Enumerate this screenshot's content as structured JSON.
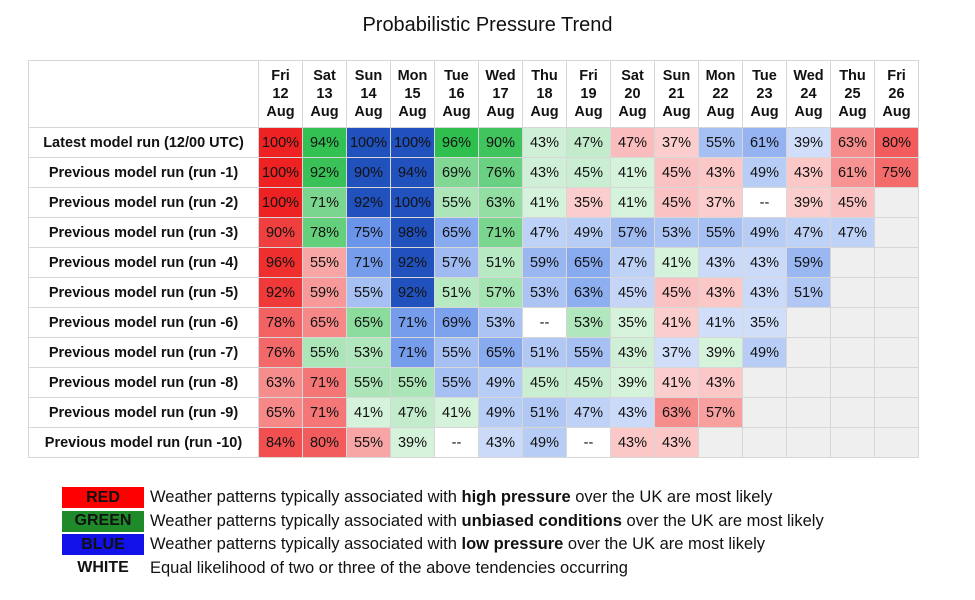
{
  "chart_data": {
    "type": "table",
    "title": "Probabilistic Pressure Trend",
    "columns": [
      {
        "day": "Fri",
        "date": "12",
        "month": "Aug"
      },
      {
        "day": "Sat",
        "date": "13",
        "month": "Aug"
      },
      {
        "day": "Sun",
        "date": "14",
        "month": "Aug"
      },
      {
        "day": "Mon",
        "date": "15",
        "month": "Aug"
      },
      {
        "day": "Tue",
        "date": "16",
        "month": "Aug"
      },
      {
        "day": "Wed",
        "date": "17",
        "month": "Aug"
      },
      {
        "day": "Thu",
        "date": "18",
        "month": "Aug"
      },
      {
        "day": "Fri",
        "date": "19",
        "month": "Aug"
      },
      {
        "day": "Sat",
        "date": "20",
        "month": "Aug"
      },
      {
        "day": "Sun",
        "date": "21",
        "month": "Aug"
      },
      {
        "day": "Mon",
        "date": "22",
        "month": "Aug"
      },
      {
        "day": "Tue",
        "date": "23",
        "month": "Aug"
      },
      {
        "day": "Wed",
        "date": "24",
        "month": "Aug"
      },
      {
        "day": "Thu",
        "date": "25",
        "month": "Aug"
      },
      {
        "day": "Fri",
        "date": "26",
        "month": "Aug"
      }
    ],
    "rows": [
      {
        "label": "Latest model run (12/00 UTC)",
        "cells": [
          {
            "v": "100%",
            "t": "H"
          },
          {
            "v": "94%",
            "t": "U"
          },
          {
            "v": "100%",
            "t": "L"
          },
          {
            "v": "100%",
            "t": "L"
          },
          {
            "v": "96%",
            "t": "U"
          },
          {
            "v": "90%",
            "t": "U"
          },
          {
            "v": "43%",
            "t": "U"
          },
          {
            "v": "47%",
            "t": "U"
          },
          {
            "v": "47%",
            "t": "H"
          },
          {
            "v": "37%",
            "t": "H"
          },
          {
            "v": "55%",
            "t": "L"
          },
          {
            "v": "61%",
            "t": "L"
          },
          {
            "v": "39%",
            "t": "L"
          },
          {
            "v": "63%",
            "t": "H"
          },
          {
            "v": "80%",
            "t": "H"
          }
        ]
      },
      {
        "label": "Previous model run (run -1)",
        "cells": [
          {
            "v": "100%",
            "t": "H"
          },
          {
            "v": "92%",
            "t": "U"
          },
          {
            "v": "90%",
            "t": "L"
          },
          {
            "v": "94%",
            "t": "L"
          },
          {
            "v": "69%",
            "t": "U"
          },
          {
            "v": "76%",
            "t": "U"
          },
          {
            "v": "43%",
            "t": "U"
          },
          {
            "v": "45%",
            "t": "U"
          },
          {
            "v": "41%",
            "t": "U"
          },
          {
            "v": "45%",
            "t": "H"
          },
          {
            "v": "43%",
            "t": "H"
          },
          {
            "v": "49%",
            "t": "L"
          },
          {
            "v": "43%",
            "t": "H"
          },
          {
            "v": "61%",
            "t": "H"
          },
          {
            "v": "75%",
            "t": "H"
          }
        ]
      },
      {
        "label": "Previous model run (run -2)",
        "cells": [
          {
            "v": "100%",
            "t": "H"
          },
          {
            "v": "71%",
            "t": "U"
          },
          {
            "v": "92%",
            "t": "L"
          },
          {
            "v": "100%",
            "t": "L"
          },
          {
            "v": "55%",
            "t": "U"
          },
          {
            "v": "63%",
            "t": "U"
          },
          {
            "v": "41%",
            "t": "U"
          },
          {
            "v": "35%",
            "t": "H"
          },
          {
            "v": "41%",
            "t": "U"
          },
          {
            "v": "45%",
            "t": "H"
          },
          {
            "v": "37%",
            "t": "H"
          },
          {
            "v": "--",
            "t": "W"
          },
          {
            "v": "39%",
            "t": "H"
          },
          {
            "v": "45%",
            "t": "H"
          },
          {
            "v": "",
            "t": "E"
          }
        ]
      },
      {
        "label": "Previous model run (run -3)",
        "cells": [
          {
            "v": "90%",
            "t": "H"
          },
          {
            "v": "78%",
            "t": "U"
          },
          {
            "v": "75%",
            "t": "L"
          },
          {
            "v": "98%",
            "t": "L"
          },
          {
            "v": "65%",
            "t": "L"
          },
          {
            "v": "71%",
            "t": "U"
          },
          {
            "v": "47%",
            "t": "L"
          },
          {
            "v": "49%",
            "t": "L"
          },
          {
            "v": "57%",
            "t": "L"
          },
          {
            "v": "53%",
            "t": "L"
          },
          {
            "v": "55%",
            "t": "L"
          },
          {
            "v": "49%",
            "t": "L"
          },
          {
            "v": "47%",
            "t": "L"
          },
          {
            "v": "47%",
            "t": "L"
          },
          {
            "v": "",
            "t": "E"
          }
        ]
      },
      {
        "label": "Previous model run (run -4)",
        "cells": [
          {
            "v": "96%",
            "t": "H"
          },
          {
            "v": "55%",
            "t": "H"
          },
          {
            "v": "71%",
            "t": "L"
          },
          {
            "v": "92%",
            "t": "L"
          },
          {
            "v": "57%",
            "t": "L"
          },
          {
            "v": "51%",
            "t": "U"
          },
          {
            "v": "59%",
            "t": "L"
          },
          {
            "v": "65%",
            "t": "L"
          },
          {
            "v": "47%",
            "t": "L"
          },
          {
            "v": "41%",
            "t": "U"
          },
          {
            "v": "43%",
            "t": "L"
          },
          {
            "v": "43%",
            "t": "L"
          },
          {
            "v": "59%",
            "t": "L"
          },
          {
            "v": "",
            "t": "E"
          },
          {
            "v": "",
            "t": "E"
          }
        ]
      },
      {
        "label": "Previous model run (run -5)",
        "cells": [
          {
            "v": "92%",
            "t": "H"
          },
          {
            "v": "59%",
            "t": "H"
          },
          {
            "v": "55%",
            "t": "L"
          },
          {
            "v": "92%",
            "t": "L"
          },
          {
            "v": "51%",
            "t": "U"
          },
          {
            "v": "57%",
            "t": "U"
          },
          {
            "v": "53%",
            "t": "L"
          },
          {
            "v": "63%",
            "t": "L"
          },
          {
            "v": "45%",
            "t": "L"
          },
          {
            "v": "45%",
            "t": "H"
          },
          {
            "v": "43%",
            "t": "H"
          },
          {
            "v": "43%",
            "t": "L"
          },
          {
            "v": "51%",
            "t": "L"
          },
          {
            "v": "",
            "t": "E"
          },
          {
            "v": "",
            "t": "E"
          }
        ]
      },
      {
        "label": "Previous model run (run -6)",
        "cells": [
          {
            "v": "78%",
            "t": "H"
          },
          {
            "v": "65%",
            "t": "H"
          },
          {
            "v": "65%",
            "t": "U"
          },
          {
            "v": "71%",
            "t": "L"
          },
          {
            "v": "69%",
            "t": "L"
          },
          {
            "v": "53%",
            "t": "L"
          },
          {
            "v": "--",
            "t": "W"
          },
          {
            "v": "53%",
            "t": "U"
          },
          {
            "v": "35%",
            "t": "U"
          },
          {
            "v": "41%",
            "t": "H"
          },
          {
            "v": "41%",
            "t": "L"
          },
          {
            "v": "35%",
            "t": "L"
          },
          {
            "v": "",
            "t": "E"
          },
          {
            "v": "",
            "t": "E"
          },
          {
            "v": "",
            "t": "E"
          }
        ]
      },
      {
        "label": "Previous model run (run -7)",
        "cells": [
          {
            "v": "76%",
            "t": "H"
          },
          {
            "v": "55%",
            "t": "U"
          },
          {
            "v": "53%",
            "t": "U"
          },
          {
            "v": "71%",
            "t": "L"
          },
          {
            "v": "55%",
            "t": "L"
          },
          {
            "v": "65%",
            "t": "L"
          },
          {
            "v": "51%",
            "t": "L"
          },
          {
            "v": "55%",
            "t": "L"
          },
          {
            "v": "43%",
            "t": "U"
          },
          {
            "v": "37%",
            "t": "L"
          },
          {
            "v": "39%",
            "t": "U"
          },
          {
            "v": "49%",
            "t": "L"
          },
          {
            "v": "",
            "t": "E"
          },
          {
            "v": "",
            "t": "E"
          },
          {
            "v": "",
            "t": "E"
          }
        ]
      },
      {
        "label": "Previous model run (run -8)",
        "cells": [
          {
            "v": "63%",
            "t": "H"
          },
          {
            "v": "71%",
            "t": "H"
          },
          {
            "v": "55%",
            "t": "U"
          },
          {
            "v": "55%",
            "t": "U"
          },
          {
            "v": "55%",
            "t": "L"
          },
          {
            "v": "49%",
            "t": "L"
          },
          {
            "v": "45%",
            "t": "U"
          },
          {
            "v": "45%",
            "t": "U"
          },
          {
            "v": "39%",
            "t": "U"
          },
          {
            "v": "41%",
            "t": "H"
          },
          {
            "v": "43%",
            "t": "H"
          },
          {
            "v": "",
            "t": "E"
          },
          {
            "v": "",
            "t": "E"
          },
          {
            "v": "",
            "t": "E"
          },
          {
            "v": "",
            "t": "E"
          }
        ]
      },
      {
        "label": "Previous model run (run -9)",
        "cells": [
          {
            "v": "65%",
            "t": "H"
          },
          {
            "v": "71%",
            "t": "H"
          },
          {
            "v": "41%",
            "t": "U"
          },
          {
            "v": "47%",
            "t": "U"
          },
          {
            "v": "41%",
            "t": "U"
          },
          {
            "v": "49%",
            "t": "L"
          },
          {
            "v": "51%",
            "t": "L"
          },
          {
            "v": "47%",
            "t": "L"
          },
          {
            "v": "43%",
            "t": "L"
          },
          {
            "v": "63%",
            "t": "H"
          },
          {
            "v": "57%",
            "t": "H"
          },
          {
            "v": "",
            "t": "E"
          },
          {
            "v": "",
            "t": "E"
          },
          {
            "v": "",
            "t": "E"
          },
          {
            "v": "",
            "t": "E"
          }
        ]
      },
      {
        "label": "Previous model run (run -10)",
        "cells": [
          {
            "v": "84%",
            "t": "H"
          },
          {
            "v": "80%",
            "t": "H"
          },
          {
            "v": "55%",
            "t": "H"
          },
          {
            "v": "39%",
            "t": "U"
          },
          {
            "v": "--",
            "t": "W"
          },
          {
            "v": "43%",
            "t": "L"
          },
          {
            "v": "49%",
            "t": "L"
          },
          {
            "v": "--",
            "t": "W"
          },
          {
            "v": "43%",
            "t": "H"
          },
          {
            "v": "43%",
            "t": "H"
          },
          {
            "v": "",
            "t": "E"
          },
          {
            "v": "",
            "t": "E"
          },
          {
            "v": "",
            "t": "E"
          },
          {
            "v": "",
            "t": "E"
          },
          {
            "v": "",
            "t": "E"
          }
        ]
      }
    ]
  },
  "colors": {
    "high_pressure": "#ee2222",
    "unbiased": "#22bb44",
    "low_pressure": "#1f5fe0",
    "white": "#ffffff",
    "empty": "#efefef"
  },
  "legend": [
    {
      "key": "RED",
      "swatch_color": "#ff0000",
      "key_color": "#111111",
      "pre": "Weather patterns typically associated with ",
      "bold": "high pressure",
      "post": " over the UK are most likely"
    },
    {
      "key": "GREEN",
      "swatch_color": "#1e8a2a",
      "key_color": "#111111",
      "pre": "Weather patterns typically associated with ",
      "bold": "unbiased conditions",
      "post": " over the UK are most likely"
    },
    {
      "key": "BLUE",
      "swatch_color": "#1212e8",
      "key_color": "#111111",
      "pre": "Weather patterns typically associated with ",
      "bold": "low pressure",
      "post": " over the UK are most likely"
    },
    {
      "key": "WHITE",
      "swatch_color": "#ffffff",
      "key_color": "#111111",
      "pre": "Equal likelihood of two or three of the above tendencies occurring",
      "bold": "",
      "post": ""
    }
  ]
}
